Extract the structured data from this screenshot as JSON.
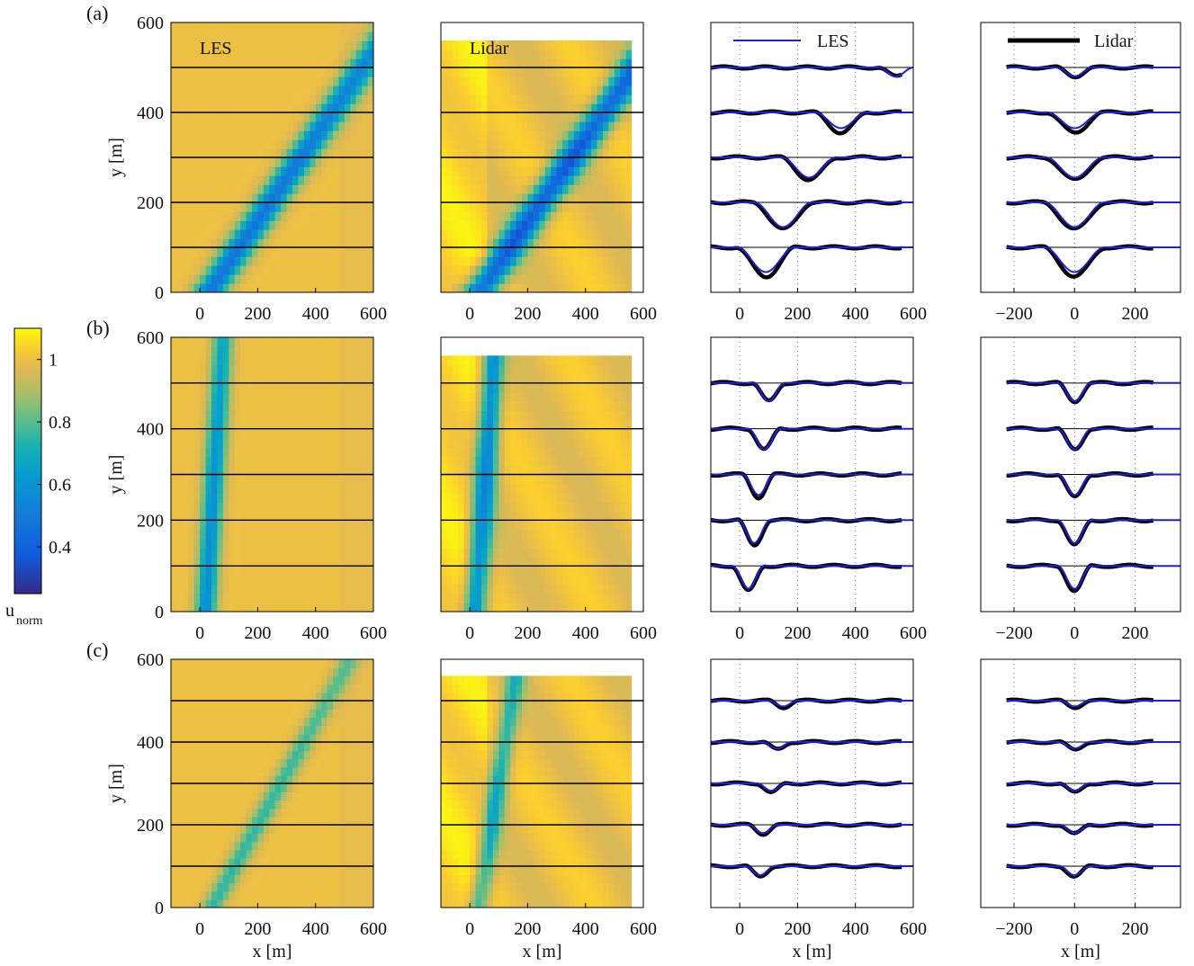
{
  "chart_data": {
    "type": "heatmap+line",
    "colorbar": {
      "label_main": "u",
      "label_sub": "norm",
      "range": [
        0.25,
        1.1
      ],
      "ticks": [
        0.4,
        0.6,
        0.8,
        1
      ],
      "tick_labels": [
        "0.4",
        "0.6",
        "0.8",
        "1"
      ]
    },
    "axes_labels": {
      "x": "x [m]",
      "y": "y [m]"
    },
    "map_panel": {
      "xlim": [
        -100,
        600
      ],
      "ylim": [
        0,
        600
      ],
      "xticks": [
        0,
        200,
        400,
        600
      ],
      "yticks": [
        0,
        200,
        400,
        600
      ],
      "transect_y": [
        100,
        200,
        300,
        400,
        500
      ],
      "lidar_extent": {
        "x": [
          -100,
          560
        ],
        "y": [
          0,
          560
        ]
      }
    },
    "profile_ticks": {
      "abs": {
        "xlim": [
          -100,
          600
        ],
        "ticks": [
          0,
          200,
          400,
          600
        ]
      },
      "rel": {
        "xlim": [
          -310,
          350
        ],
        "ticks": [
          -200,
          0,
          200
        ]
      }
    },
    "legend": [
      {
        "name": "LES",
        "color": "#1f1fd6"
      },
      {
        "name": "Lidar",
        "color": "#000000"
      }
    ],
    "rows": [
      {
        "label": "(a)",
        "les_title": "LES",
        "lidar_title": "Lidar",
        "wake": {
          "les": {
            "x0": 30,
            "slope": 0.56,
            "width": 140,
            "deficit": 0.62
          },
          "lidar": {
            "x0": 30,
            "slope": 0.57,
            "width": 145,
            "deficit": 0.7
          }
        },
        "profiles": [
          {
            "y": 100,
            "center": 90,
            "width": 200,
            "depth_les": 55,
            "depth_lidar": 65
          },
          {
            "y": 200,
            "center": 150,
            "width": 200,
            "depth_les": 55,
            "depth_lidar": 60
          },
          {
            "y": 300,
            "center": 240,
            "width": 190,
            "depth_les": 45,
            "depth_lidar": 50
          },
          {
            "y": 400,
            "center": 350,
            "width": 180,
            "depth_les": 35,
            "depth_lidar": 45
          },
          {
            "y": 500,
            "center": 540,
            "width": 120,
            "depth_les": 20,
            "depth_lidar": 20
          }
        ]
      },
      {
        "label": "(b)",
        "les_title": "",
        "lidar_title": "",
        "wake": {
          "les": {
            "x0": 20,
            "slope": 0.1,
            "width": 90,
            "deficit": 0.5
          },
          "lidar": {
            "x0": 20,
            "slope": 0.11,
            "width": 95,
            "deficit": 0.55
          }
        },
        "profiles": [
          {
            "y": 100,
            "center": 30,
            "width": 110,
            "depth_les": 50,
            "depth_lidar": 55
          },
          {
            "y": 200,
            "center": 50,
            "width": 110,
            "depth_les": 50,
            "depth_lidar": 55
          },
          {
            "y": 300,
            "center": 65,
            "width": 110,
            "depth_les": 45,
            "depth_lidar": 50
          },
          {
            "y": 400,
            "center": 85,
            "width": 110,
            "depth_les": 45,
            "depth_lidar": 45
          },
          {
            "y": 500,
            "center": 100,
            "width": 110,
            "depth_les": 40,
            "depth_lidar": 40
          }
        ]
      },
      {
        "label": "(c)",
        "les_title": "",
        "lidar_title": "",
        "wake": {
          "les": {
            "x0": 40,
            "slope": 0.42,
            "width": 95,
            "deficit": 0.3
          },
          "lidar": {
            "x0": 30,
            "slope": 0.23,
            "width": 85,
            "deficit": 0.35
          }
        },
        "profiles": [
          {
            "y": 100,
            "center": 70,
            "width": 100,
            "depth_les": 22,
            "depth_lidar": 25
          },
          {
            "y": 200,
            "center": 80,
            "width": 100,
            "depth_les": 20,
            "depth_lidar": 22
          },
          {
            "y": 300,
            "center": 110,
            "width": 100,
            "depth_les": 18,
            "depth_lidar": 22
          },
          {
            "y": 400,
            "center": 130,
            "width": 100,
            "depth_les": 16,
            "depth_lidar": 18
          },
          {
            "y": 500,
            "center": 150,
            "width": 100,
            "depth_les": 14,
            "depth_lidar": 16
          }
        ]
      }
    ]
  }
}
